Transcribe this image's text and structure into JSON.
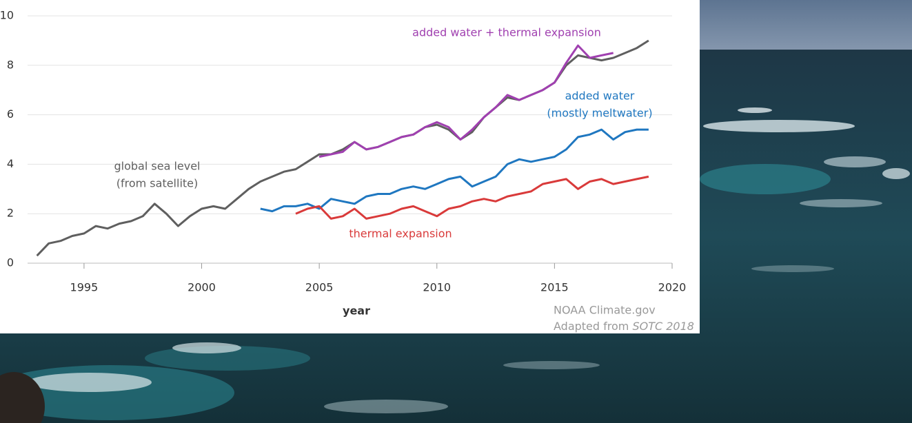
{
  "chart_data": {
    "type": "line",
    "x_label": "year",
    "source": "NOAA Climate.gov",
    "source_prefix": "Adapted from",
    "source_italic": "SOTC 2018",
    "xlim": [
      1992.6,
      2020
    ],
    "xticks": [
      1995,
      2000,
      2005,
      2010,
      2015,
      2020
    ],
    "ylim": [
      0,
      10
    ],
    "yticks": [
      0,
      2,
      4,
      6,
      8,
      10
    ],
    "grid": true,
    "series": [
      {
        "name": "global sea level",
        "name_line2": "(from satellite)",
        "color": "#5f5f5f",
        "x": [
          1993,
          1993.5,
          1994,
          1994.5,
          1995,
          1995.5,
          1996,
          1996.5,
          1997,
          1997.5,
          1998,
          1998.5,
          1999,
          1999.5,
          2000,
          2000.5,
          2001,
          2001.5,
          2002,
          2002.5,
          2003,
          2003.5,
          2004,
          2004.5,
          2005,
          2005.5,
          2006,
          2006.5,
          2007,
          2007.5,
          2008,
          2008.5,
          2009,
          2009.5,
          2010,
          2010.5,
          2011,
          2011.5,
          2012,
          2012.5,
          2013,
          2013.5,
          2014,
          2014.5,
          2015,
          2015.5,
          2016,
          2016.5,
          2017,
          2017.5,
          2018,
          2018.5,
          2019
        ],
        "values": [
          0.3,
          0.8,
          0.9,
          1.1,
          1.2,
          1.5,
          1.4,
          1.6,
          1.7,
          1.9,
          2.4,
          2.0,
          1.5,
          1.9,
          2.2,
          2.3,
          2.2,
          2.6,
          3.0,
          3.3,
          3.5,
          3.7,
          3.8,
          4.1,
          4.4,
          4.4,
          4.6,
          4.9,
          4.6,
          4.7,
          4.9,
          5.1,
          5.2,
          5.5,
          5.6,
          5.4,
          5.0,
          5.3,
          5.9,
          6.3,
          6.7,
          6.6,
          6.8,
          7.0,
          7.3,
          8.0,
          8.4,
          8.3,
          8.2,
          8.3,
          8.5,
          8.7,
          9.0
        ]
      },
      {
        "name": "added water + thermal expansion",
        "color": "#a040b0",
        "x": [
          2005,
          2005.5,
          2006,
          2006.5,
          2007,
          2007.5,
          2008,
          2008.5,
          2009,
          2009.5,
          2010,
          2010.5,
          2011,
          2011.5,
          2012,
          2012.5,
          2013,
          2013.5,
          2014,
          2014.5,
          2015,
          2015.5,
          2016,
          2016.5,
          2017,
          2017.5
        ],
        "values": [
          4.3,
          4.4,
          4.5,
          4.9,
          4.6,
          4.7,
          4.9,
          5.1,
          5.2,
          5.5,
          5.7,
          5.5,
          5.0,
          5.4,
          5.9,
          6.3,
          6.8,
          6.6,
          6.8,
          7.0,
          7.3,
          8.1,
          8.8,
          8.3,
          8.4,
          8.5
        ]
      },
      {
        "name": "added water",
        "name_line2": "(mostly meltwater)",
        "color": "#1f77c0",
        "x": [
          2002.5,
          2003,
          2003.5,
          2004,
          2004.5,
          2005,
          2005.5,
          2006,
          2006.5,
          2007,
          2007.5,
          2008,
          2008.5,
          2009,
          2009.5,
          2010,
          2010.5,
          2011,
          2011.5,
          2012,
          2012.5,
          2013,
          2013.5,
          2014,
          2014.5,
          2015,
          2015.5,
          2016,
          2016.5,
          2017,
          2017.5,
          2018,
          2018.5,
          2019
        ],
        "values": [
          2.2,
          2.1,
          2.3,
          2.3,
          2.4,
          2.2,
          2.6,
          2.5,
          2.4,
          2.7,
          2.8,
          2.8,
          3.0,
          3.1,
          3.0,
          3.2,
          3.4,
          3.5,
          3.1,
          3.3,
          3.5,
          4.0,
          4.2,
          4.1,
          4.2,
          4.3,
          4.6,
          5.1,
          5.2,
          5.4,
          5.0,
          5.3,
          5.4,
          5.4
        ]
      },
      {
        "name": "thermal expansion",
        "color": "#d93a3a",
        "x": [
          2004,
          2004.5,
          2005,
          2005.5,
          2006,
          2006.5,
          2007,
          2007.5,
          2008,
          2008.5,
          2009,
          2009.5,
          2010,
          2010.5,
          2011,
          2011.5,
          2012,
          2012.5,
          2013,
          2013.5,
          2014,
          2014.5,
          2015,
          2015.5,
          2016,
          2016.5,
          2017,
          2017.5,
          2018,
          2018.5,
          2019
        ],
        "values": [
          2.0,
          2.2,
          2.3,
          1.8,
          1.9,
          2.2,
          1.8,
          1.9,
          2.0,
          2.2,
          2.3,
          2.1,
          1.9,
          2.2,
          2.3,
          2.5,
          2.6,
          2.5,
          2.7,
          2.8,
          2.9,
          3.2,
          3.3,
          3.4,
          3.0,
          3.3,
          3.4,
          3.2,
          3.3,
          3.4,
          3.5
        ]
      }
    ]
  }
}
